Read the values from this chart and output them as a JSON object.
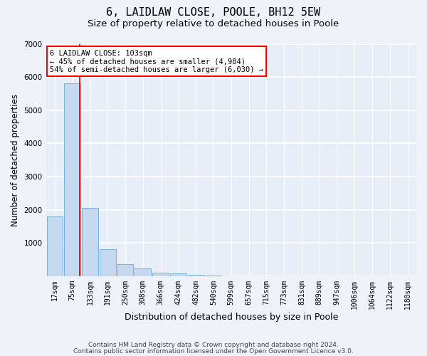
{
  "title": "6, LAIDLAW CLOSE, POOLE, BH12 5EW",
  "subtitle": "Size of property relative to detached houses in Poole",
  "xlabel": "Distribution of detached houses by size in Poole",
  "ylabel": "Number of detached properties",
  "bar_labels": [
    "17sqm",
    "75sqm",
    "133sqm",
    "191sqm",
    "250sqm",
    "308sqm",
    "366sqm",
    "424sqm",
    "482sqm",
    "540sqm",
    "599sqm",
    "657sqm",
    "715sqm",
    "773sqm",
    "831sqm",
    "889sqm",
    "947sqm",
    "1006sqm",
    "1064sqm",
    "1122sqm",
    "1180sqm"
  ],
  "bar_values": [
    1800,
    5800,
    2060,
    810,
    370,
    230,
    110,
    80,
    50,
    30,
    5,
    0,
    0,
    0,
    0,
    0,
    0,
    0,
    0,
    0,
    0
  ],
  "bar_color": "#c5d8f0",
  "bar_edge_color": "#6aaad4",
  "property_line_x": 1.42,
  "property_label": "6 LAIDLAW CLOSE: 103sqm",
  "annotation_line1": "← 45% of detached houses are smaller (4,984)",
  "annotation_line2": "54% of semi-detached houses are larger (6,030) →",
  "vline_color": "#cc0000",
  "ylim": [
    0,
    7000
  ],
  "yticks": [
    0,
    1000,
    2000,
    3000,
    4000,
    5000,
    6000,
    7000
  ],
  "footnote1": "Contains HM Land Registry data © Crown copyright and database right 2024.",
  "footnote2": "Contains public sector information licensed under the Open Government Licence v3.0.",
  "background_color": "#eef2f9",
  "plot_bg_color": "#e8eef8",
  "grid_color": "#ffffff",
  "title_fontsize": 11,
  "subtitle_fontsize": 9.5,
  "axis_label_fontsize": 8.5,
  "tick_fontsize": 7,
  "annotation_fontsize": 7.5,
  "footnote_fontsize": 6.5
}
